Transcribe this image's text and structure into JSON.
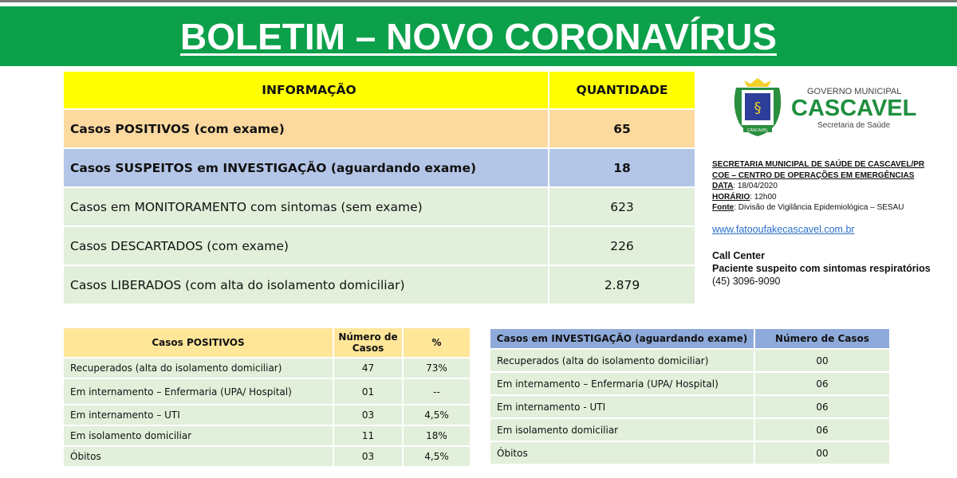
{
  "title": "BOLETIM – NOVO CORONAVÍRUS",
  "colors": {
    "banner": "#0ca04a",
    "header_yellow": "#ffff00",
    "positive": "#fcd99f",
    "suspect": "#b4c6e7",
    "row_green": "#e2efda",
    "t2_header": "#ffe699",
    "t3_header": "#8eaadb"
  },
  "main_table": {
    "headers": [
      "INFORMAÇÃO",
      "QUANTIDADE"
    ],
    "rows": [
      {
        "label": "Casos POSITIVOS (com exame)",
        "value": "65"
      },
      {
        "label": "Casos SUSPEITOS em INVESTIGAÇÃO (aguardando exame)",
        "value": "18"
      },
      {
        "label": "Casos em MONITORAMENTO com sintomas (sem exame)",
        "value": "623"
      },
      {
        "label": "Casos DESCARTADOS (com exame)",
        "value": "226"
      },
      {
        "label": "Casos LIBERADOS (com alta do isolamento domiciliar)",
        "value": "2.879"
      }
    ]
  },
  "logo": {
    "line1": "GOVERNO MUNICIPAL",
    "line2": "CASCAVEL",
    "line3": "Secretaria de Saúde",
    "seal_text": "CASCAVEL"
  },
  "info": {
    "line1": "SECRETARIA MUNICIPAL DE SAÚDE DE CASCAVEL/PR",
    "line2": "COE – CENTRO DE OPERAÇÕES EM EMERGÊNCIAS",
    "date_label": "DATA",
    "date": ": 18/04/2020",
    "time_label": "HORÁRIO",
    "time": ": 12h00",
    "source_label": "Fonte",
    "source": ": Divisão de Vigilância Epidemiológica – SESAU",
    "link": "www.fatooufakecascavel.com.br",
    "call_title": "Call Center",
    "call_sub": "Paciente suspeito com sintomas respiratórios",
    "phone": "(45) 3096-9090"
  },
  "positive_table": {
    "headers": [
      "Casos POSITIVOS",
      "Número de Casos",
      "%"
    ],
    "rows": [
      {
        "label": "Recuperados (alta do isolamento domiciliar)",
        "n": "47",
        "pct": "73%"
      },
      {
        "label": "Em internamento – Enfermaria (UPA/ Hospital)",
        "n": "01",
        "pct": "--"
      },
      {
        "label": "Em internamento – UTI",
        "n": "03",
        "pct": "4,5%"
      },
      {
        "label": "Em isolamento domiciliar",
        "n": "11",
        "pct": "18%"
      },
      {
        "label": "Óbitos",
        "n": "03",
        "pct": "4,5%"
      }
    ]
  },
  "investigation_table": {
    "headers": [
      "Casos em INVESTIGAÇÃO (aguardando exame)",
      "Número de Casos"
    ],
    "rows": [
      {
        "label": "Recuperados (alta do isolamento domiciliar)",
        "n": "00"
      },
      {
        "label": "Em internamento – Enfermaria (UPA/ Hospital)",
        "n": "06"
      },
      {
        "label": "Em internamento - UTI",
        "n": "06"
      },
      {
        "label": "Em isolamento domiciliar",
        "n": "06"
      },
      {
        "label": "Óbitos",
        "n": "00"
      }
    ]
  }
}
